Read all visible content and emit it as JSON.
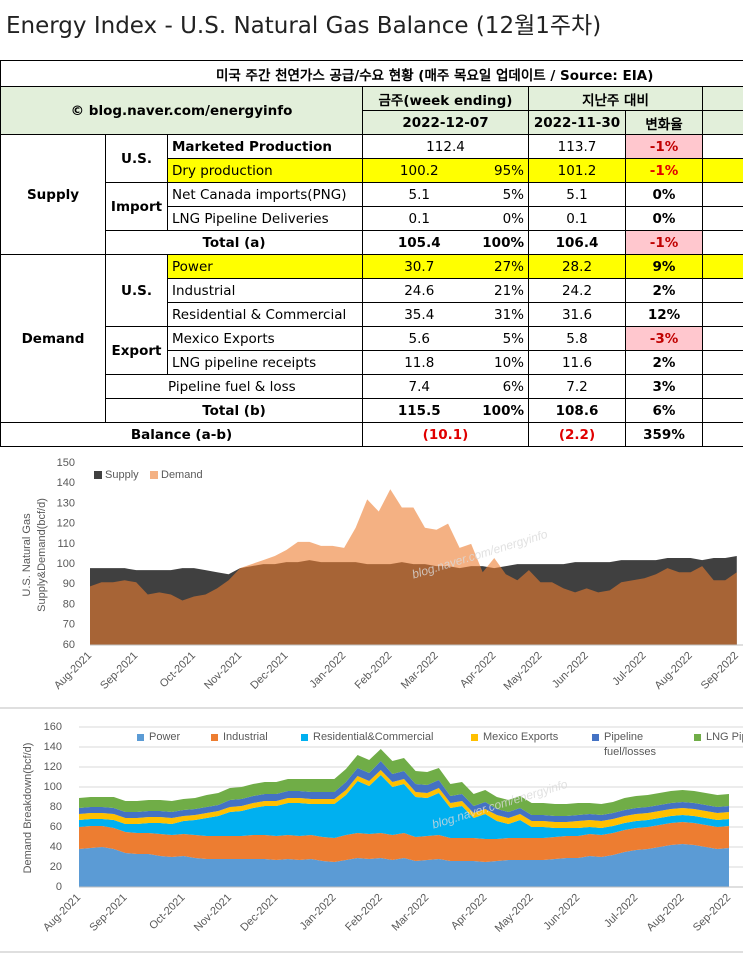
{
  "title": "Energy Index - U.S. Natural Gas Balance (12월1주차)",
  "table": {
    "title": "미국 주간 천연가스 공급/수요 현황 (매주 목요일 업데이트 / Source: EIA)",
    "source": "© blog.naver.com/energyinfo",
    "header": {
      "this_week": "금주(week ending)",
      "vs_last_week": "지난주 대비",
      "this_date": "2022-12-07",
      "last_date": "2022-11-30",
      "change": "변화율"
    },
    "rows": [
      {
        "section": "Supply",
        "group": "U.S.",
        "item": "Marketed Production",
        "value": "112.4",
        "previous": "113.7",
        "change": "-1%"
      },
      {
        "item": "Dry production",
        "value": "100.2",
        "share": "95%",
        "previous": "101.2",
        "change": "-1%"
      },
      {
        "group": "Import",
        "item": "Net Canada imports(PNG)",
        "value": "5.1",
        "share": "5%",
        "previous": "5.1",
        "change": "0%"
      },
      {
        "item": "LNG Pipeline Deliveries",
        "value": "0.1",
        "share": "0%",
        "previous": "0.1",
        "change": "0%"
      },
      {
        "item": "Total (a)",
        "value": "105.4",
        "share": "100%",
        "previous": "106.4",
        "change": "-1%"
      },
      {
        "section": "Demand",
        "group": "U.S.",
        "item": "Power",
        "value": "30.7",
        "share": "27%",
        "previous": "28.2",
        "change": "9%"
      },
      {
        "item": "Industrial",
        "value": "24.6",
        "share": "21%",
        "previous": "24.2",
        "change": "2%"
      },
      {
        "item": "Residential & Commercial",
        "value": "35.4",
        "share": "31%",
        "previous": "31.6",
        "change": "12%"
      },
      {
        "group": "Export",
        "item": "Mexico Exports",
        "value": "5.6",
        "share": "5%",
        "previous": "5.8",
        "change": "-3%"
      },
      {
        "item": "LNG pipeline receipts",
        "value": "11.8",
        "share": "10%",
        "previous": "11.6",
        "change": "2%"
      },
      {
        "item": "Pipeline fuel & loss",
        "value": "7.4",
        "share": "6%",
        "previous": "7.2",
        "change": "3%"
      },
      {
        "item": "Total (b)",
        "value": "115.5",
        "share": "100%",
        "previous": "108.6",
        "change": "6%"
      },
      {
        "item": "Balance (a-b)",
        "value": "(10.1)",
        "previous": "(2.2)",
        "change": "359%"
      }
    ]
  },
  "chart_data": [
    {
      "type": "area",
      "ylabel": [
        "U.S. Natural Gas",
        "Supply&Demand(bcf/d)"
      ],
      "watermark": "blog.naver.com/energyinfo",
      "categories": [
        "Aug-2021",
        null,
        null,
        null,
        "Sep-2021",
        null,
        null,
        null,
        null,
        "Oct-2021",
        null,
        null,
        null,
        "Nov-2021",
        null,
        null,
        null,
        "Dec-2021",
        null,
        null,
        null,
        null,
        "Jan-2022",
        null,
        null,
        null,
        "Feb-2022",
        null,
        null,
        null,
        "Mar-2022",
        null,
        null,
        null,
        null,
        "Apr-2022",
        null,
        null,
        null,
        "May-2022",
        null,
        null,
        null,
        "Jun-2022",
        null,
        null,
        null,
        null,
        "Jul-2022",
        null,
        null,
        null,
        "Aug-2022",
        null,
        null,
        null,
        "Sep-2022"
      ],
      "series": [
        {
          "name": "Supply",
          "color": "#404040",
          "values": [
            98,
            98,
            98,
            98,
            97,
            97,
            97,
            97,
            98,
            98,
            97,
            96,
            95,
            98,
            99,
            100,
            100,
            101,
            101,
            102,
            101,
            101,
            101,
            101,
            100,
            100,
            100,
            101,
            100,
            100,
            99,
            99,
            98,
            99,
            99,
            98,
            99,
            100,
            100,
            100,
            100,
            100,
            101,
            101,
            101,
            101,
            102,
            102,
            102,
            102,
            103,
            103,
            103,
            102,
            103,
            103,
            104
          ]
        },
        {
          "name": "Demand",
          "color": "#ed7d31",
          "fill_opacity": 0.6,
          "values": [
            89,
            91,
            91,
            92,
            91,
            85,
            86,
            85,
            82,
            84,
            85,
            88,
            92,
            98,
            100,
            102,
            104,
            107,
            111,
            111,
            109,
            109,
            108,
            118,
            132,
            126,
            137,
            128,
            128,
            118,
            117,
            120,
            108,
            110,
            96,
            103,
            95,
            92,
            97,
            91,
            91,
            88,
            86,
            88,
            86,
            87,
            91,
            92,
            93,
            95,
            98,
            96,
            96,
            99,
            92,
            92,
            96
          ]
        }
      ],
      "ylim": [
        60,
        150
      ],
      "yticks": [
        60,
        70,
        80,
        90,
        100,
        110,
        120,
        130,
        140,
        150
      ],
      "grid": false,
      "legend": "top-left"
    },
    {
      "type": "stacked_area",
      "ylabel": "Demand Breakdown(bcf/d)",
      "watermark": "blog.naver.com/energyinfo",
      "categories": [
        "Aug-2021",
        null,
        null,
        null,
        "Sep-2021",
        null,
        null,
        null,
        null,
        "Oct-2021",
        null,
        null,
        null,
        "Nov-2021",
        null,
        null,
        null,
        "Dec-2021",
        null,
        null,
        null,
        null,
        "Jan-2022",
        null,
        null,
        null,
        "Feb-2022",
        null,
        null,
        null,
        "Mar-2022",
        null,
        null,
        null,
        null,
        "Apr-2022",
        null,
        null,
        null,
        "May-2022",
        null,
        null,
        null,
        "Jun-2022",
        null,
        null,
        null,
        null,
        "Jul-2022",
        null,
        null,
        null,
        "Aug-2022",
        null,
        null,
        null,
        "Sep-2022"
      ],
      "series": [
        {
          "name": "Power",
          "color": "#5b9bd5",
          "values": [
            38,
            39,
            40,
            38,
            34,
            33,
            33,
            31,
            30,
            31,
            29,
            28,
            28,
            28,
            28,
            28,
            28,
            27,
            28,
            27,
            28,
            26,
            25,
            27,
            29,
            28,
            29,
            27,
            29,
            26,
            27,
            28,
            26,
            26,
            26,
            25,
            26,
            27,
            27,
            27,
            27,
            28,
            29,
            29,
            31,
            30,
            32,
            35,
            37,
            38,
            40,
            42,
            43,
            42,
            40,
            38,
            39
          ]
        },
        {
          "name": "Industrial",
          "color": "#ed7d31",
          "values": [
            22,
            22,
            21,
            21,
            21,
            21,
            21,
            22,
            22,
            22,
            23,
            23,
            23,
            23,
            23,
            24,
            24,
            24,
            24,
            24,
            24,
            24,
            24,
            25,
            25,
            25,
            25,
            25,
            25,
            24,
            24,
            24,
            23,
            23,
            23,
            23,
            22,
            22,
            22,
            22,
            22,
            22,
            22,
            22,
            22,
            22,
            22,
            22,
            22,
            22,
            22,
            22,
            22,
            22,
            22,
            22,
            22
          ]
        },
        {
          "name": "Residential&Commercial",
          "color": "#00b0f0",
          "values": [
            7,
            7,
            7,
            8,
            8,
            9,
            10,
            11,
            11,
            13,
            15,
            18,
            20,
            24,
            25,
            27,
            29,
            30,
            32,
            33,
            31,
            33,
            34,
            40,
            52,
            48,
            58,
            48,
            49,
            40,
            38,
            42,
            30,
            32,
            20,
            25,
            18,
            14,
            18,
            11,
            11,
            9,
            8,
            8,
            7,
            7,
            7,
            7,
            7,
            7,
            7,
            7,
            7,
            7,
            7,
            7,
            7
          ]
        },
        {
          "name": "Mexico Exports",
          "color": "#ffc000",
          "values": [
            6,
            6,
            6,
            6,
            6,
            6,
            6,
            6,
            6,
            5,
            5,
            5,
            5,
            5,
            5,
            5,
            5,
            5,
            5,
            5,
            5,
            5,
            5,
            5,
            5,
            5,
            5,
            5,
            5,
            5,
            5,
            5,
            5,
            5,
            5,
            5,
            6,
            6,
            6,
            6,
            6,
            6,
            6,
            7,
            7,
            7,
            7,
            7,
            7,
            7,
            7,
            7,
            7,
            7,
            7,
            7,
            7
          ]
        },
        {
          "name": "Pipeline fuel/losses",
          "color": "#4472c4",
          "values": [
            6,
            6,
            6,
            6,
            6,
            6,
            6,
            6,
            6,
            6,
            6,
            6,
            6,
            7,
            7,
            7,
            7,
            7,
            7,
            7,
            7,
            7,
            7,
            8,
            8,
            8,
            9,
            8,
            8,
            8,
            8,
            8,
            7,
            7,
            7,
            7,
            6,
            6,
            6,
            6,
            6,
            6,
            6,
            6,
            6,
            6,
            6,
            6,
            6,
            6,
            6,
            6,
            6,
            6,
            6,
            6,
            6
          ]
        },
        {
          "name": "LNG Pipe",
          "color": "#70ad47",
          "values": [
            10,
            10,
            10,
            11,
            11,
            11,
            11,
            11,
            11,
            11,
            11,
            12,
            12,
            12,
            12,
            12,
            12,
            12,
            12,
            12,
            13,
            13,
            13,
            13,
            13,
            13,
            12,
            13,
            13,
            13,
            13,
            12,
            12,
            12,
            12,
            12,
            12,
            12,
            12,
            12,
            12,
            12,
            12,
            12,
            11,
            11,
            11,
            12,
            12,
            12,
            12,
            12,
            12,
            12,
            12,
            12,
            12
          ]
        }
      ],
      "ylim": [
        0,
        160
      ],
      "yticks": [
        0,
        20,
        40,
        60,
        80,
        100,
        120,
        140,
        160
      ],
      "grid": true,
      "legend": "top"
    }
  ]
}
